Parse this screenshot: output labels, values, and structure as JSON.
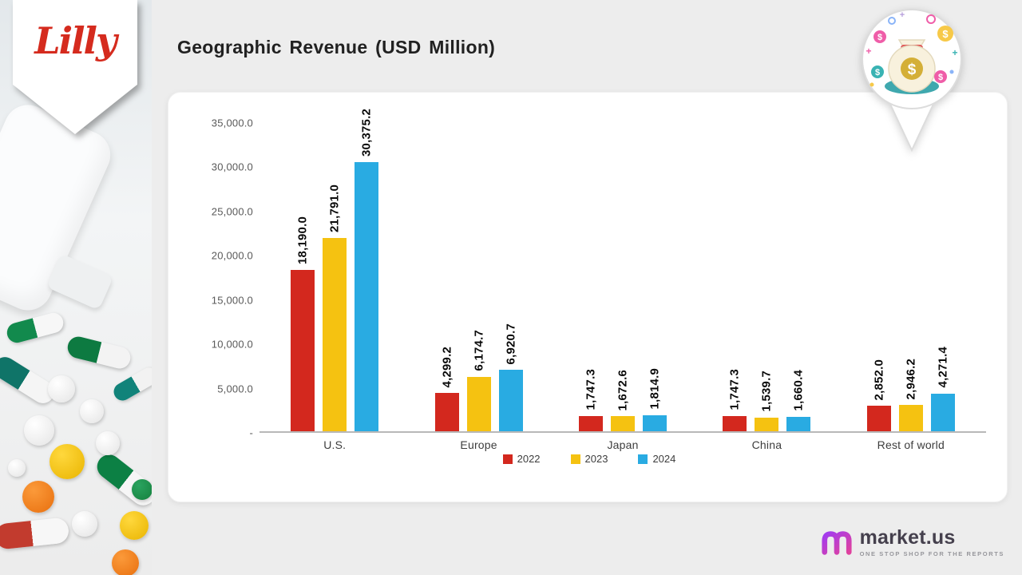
{
  "sidebar": {
    "brand": "Lilly"
  },
  "header": {
    "title": "Geographic Revenue (USD Million)"
  },
  "chart_data": {
    "type": "bar",
    "title": "Geographic Revenue (USD Million)",
    "categories": [
      "U.S.",
      "Europe",
      "Japan",
      "China",
      "Rest of world"
    ],
    "series": [
      {
        "name": "2022",
        "color": "#d3281e",
        "values": [
          18190.0,
          4299.2,
          1747.3,
          1747.3,
          2852.0
        ],
        "labels": [
          "18,190.0",
          "4,299.2",
          "1,747.3",
          "1,747.3",
          "2,852.0"
        ]
      },
      {
        "name": "2023",
        "color": "#f5c211",
        "values": [
          21791.0,
          6174.7,
          1672.6,
          1539.7,
          2946.2
        ],
        "labels": [
          "21,791.0",
          "6,174.7",
          "1,672.6",
          "1,539.7",
          "2,946.2"
        ]
      },
      {
        "name": "2024",
        "color": "#29abe2",
        "values": [
          30375.2,
          6920.7,
          1814.9,
          1660.4,
          4271.4
        ],
        "labels": [
          "30,375.2",
          "6,920.7",
          "1,814.9",
          "1,660.4",
          "4,271.4"
        ]
      }
    ],
    "ylim": [
      0,
      35000
    ],
    "yticks": [
      {
        "value": 35000,
        "label": "35,000.0"
      },
      {
        "value": 30000,
        "label": "30,000.0"
      },
      {
        "value": 25000,
        "label": "25,000.0"
      },
      {
        "value": 20000,
        "label": "20,000.0"
      },
      {
        "value": 15000,
        "label": "15,000.0"
      },
      {
        "value": 10000,
        "label": "10,000.0"
      },
      {
        "value": 5000,
        "label": "5,000.0"
      },
      {
        "value": 0,
        "label": "-"
      }
    ],
    "xlabel": "",
    "ylabel": "",
    "grid": false,
    "legend_position": "bottom"
  },
  "footer": {
    "logo_main": "market",
    "logo_suffix": ".us",
    "tagline": "ONE STOP SHOP FOR THE REPORTS"
  }
}
